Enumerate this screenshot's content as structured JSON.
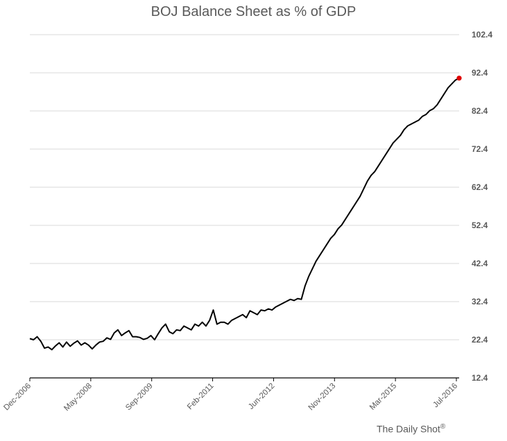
{
  "chart_data": {
    "type": "line",
    "title": "BOJ Balance Sheet as % of GDP",
    "xlabel": "",
    "ylabel": "",
    "x_tick_labels": [
      "Dec-2006",
      "May-2008",
      "Sep-2009",
      "Feb-2011",
      "Jun-2012",
      "Nov-2013",
      "Mar-2015",
      "Jul-2016"
    ],
    "y_tick_labels": [
      "12.4",
      "22.4",
      "32.4",
      "42.4",
      "52.4",
      "62.4",
      "72.4",
      "82.4",
      "92.4",
      "102.4"
    ],
    "ylim": [
      12.4,
      102.4
    ],
    "xlim": [
      "2006-12",
      "2016-09"
    ],
    "grid": "horizontal",
    "legend": "none",
    "series": [
      {
        "color": "#000000",
        "x": [
          "2006-12",
          "2007-01",
          "2007-02",
          "2007-03",
          "2007-04",
          "2007-05",
          "2007-06",
          "2007-07",
          "2007-08",
          "2007-09",
          "2007-10",
          "2007-11",
          "2007-12",
          "2008-01",
          "2008-02",
          "2008-03",
          "2008-04",
          "2008-05",
          "2008-06",
          "2008-07",
          "2008-08",
          "2008-09",
          "2008-10",
          "2008-11",
          "2008-12",
          "2009-01",
          "2009-02",
          "2009-03",
          "2009-04",
          "2009-05",
          "2009-06",
          "2009-07",
          "2009-08",
          "2009-09",
          "2009-10",
          "2009-11",
          "2009-12",
          "2010-01",
          "2010-02",
          "2010-03",
          "2010-04",
          "2010-05",
          "2010-06",
          "2010-07",
          "2010-08",
          "2010-09",
          "2010-10",
          "2010-11",
          "2010-12",
          "2011-01",
          "2011-02",
          "2011-03",
          "2011-04",
          "2011-05",
          "2011-06",
          "2011-07",
          "2011-08",
          "2011-09",
          "2011-10",
          "2011-11",
          "2011-12",
          "2012-01",
          "2012-02",
          "2012-03",
          "2012-04",
          "2012-05",
          "2012-06",
          "2012-07",
          "2012-08",
          "2012-09",
          "2012-10",
          "2012-11",
          "2012-12",
          "2013-01",
          "2013-02",
          "2013-03",
          "2013-04",
          "2013-05",
          "2013-06",
          "2013-07",
          "2013-08",
          "2013-09",
          "2013-10",
          "2013-11",
          "2013-12",
          "2014-01",
          "2014-02",
          "2014-03",
          "2014-04",
          "2014-05",
          "2014-06",
          "2014-07",
          "2014-08",
          "2014-09",
          "2014-10",
          "2014-11",
          "2014-12",
          "2015-01",
          "2015-02",
          "2015-03",
          "2015-04",
          "2015-05",
          "2015-06",
          "2015-07",
          "2015-08",
          "2015-09",
          "2015-10",
          "2015-11",
          "2015-12",
          "2016-01",
          "2016-02",
          "2016-03",
          "2016-04",
          "2016-05",
          "2016-06",
          "2016-07",
          "2016-08",
          "2016-09"
        ],
        "values": [
          22.7,
          22.4,
          23.2,
          22.0,
          20.2,
          20.5,
          19.8,
          20.8,
          21.6,
          20.5,
          21.8,
          20.7,
          21.5,
          22.1,
          21.0,
          21.6,
          21.0,
          20.0,
          21.0,
          21.8,
          22.0,
          22.9,
          22.5,
          24.2,
          25.0,
          23.5,
          24.2,
          24.8,
          23.2,
          23.2,
          23.0,
          22.5,
          22.8,
          23.5,
          22.4,
          24.0,
          25.5,
          26.5,
          24.5,
          24.0,
          25.0,
          24.8,
          26.0,
          25.5,
          25.0,
          26.5,
          26.0,
          27.0,
          26.0,
          27.5,
          30.2,
          26.5,
          27.0,
          27.0,
          26.5,
          27.5,
          28.0,
          28.5,
          29.0,
          28.2,
          30.0,
          29.5,
          29.0,
          30.2,
          30.0,
          30.5,
          30.2,
          31.0,
          31.5,
          32.0,
          32.5,
          33.0,
          32.7,
          33.2,
          33.0,
          36.5,
          39.0,
          41.0,
          43.0,
          44.5,
          46.0,
          47.5,
          49.0,
          50.0,
          51.5,
          52.5,
          54.0,
          55.5,
          57.0,
          58.5,
          60.0,
          62.0,
          64.0,
          65.5,
          66.5,
          68.0,
          69.5,
          71.0,
          72.5,
          74.0,
          75.0,
          76.0,
          77.5,
          78.5,
          79.0,
          79.5,
          80.0,
          81.0,
          81.5,
          82.5,
          83.0,
          84.0,
          85.5,
          87.0,
          88.5,
          89.5,
          90.5,
          91.0
        ]
      }
    ],
    "highlight_point": {
      "x": "2016-09",
      "y": 91.0,
      "color": "#e00000"
    },
    "source": "The Daily Shot",
    "source_mark": "®"
  }
}
